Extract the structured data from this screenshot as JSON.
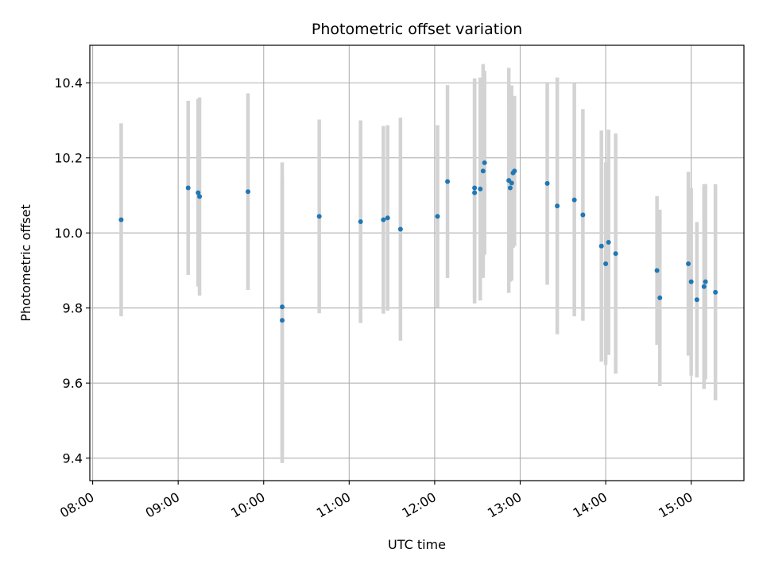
{
  "chart_data": {
    "type": "scatter",
    "title": "Photometric offset variation",
    "xlabel": "UTC time",
    "ylabel": "Photometric offset",
    "x_axis": "time",
    "xlim": [
      "07:58",
      "15:37"
    ],
    "ylim": [
      9.34,
      10.5
    ],
    "x_ticks": [
      "08:00",
      "09:00",
      "10:00",
      "11:00",
      "12:00",
      "13:00",
      "14:00",
      "15:00"
    ],
    "y_ticks": [
      9.4,
      9.6,
      9.8,
      10.0,
      10.2,
      10.4
    ],
    "grid": true,
    "legend": "none",
    "colors": {
      "point": "#1f77b4",
      "errorbar": "#d3d3d3",
      "grid": "#b0b0b0"
    },
    "points": [
      {
        "x": "08:20",
        "y": 10.035,
        "err": 0.257
      },
      {
        "x": "09:07",
        "y": 10.12,
        "err": 0.232
      },
      {
        "x": "09:14",
        "y": 10.107,
        "err": 0.25
      },
      {
        "x": "09:15",
        "y": 10.097,
        "err": 0.264
      },
      {
        "x": "09:49",
        "y": 10.11,
        "err": 0.262
      },
      {
        "x": "10:13",
        "y": 9.767,
        "err": 0.38
      },
      {
        "x": "10:13",
        "y": 9.803,
        "err": 0.385
      },
      {
        "x": "10:39",
        "y": 10.044,
        "err": 0.258
      },
      {
        "x": "11:08",
        "y": 10.03,
        "err": 0.27
      },
      {
        "x": "11:24",
        "y": 10.035,
        "err": 0.25
      },
      {
        "x": "11:27",
        "y": 10.04,
        "err": 0.247
      },
      {
        "x": "11:36",
        "y": 10.01,
        "err": 0.297
      },
      {
        "x": "12:02",
        "y": 10.044,
        "err": 0.243
      },
      {
        "x": "12:09",
        "y": 10.137,
        "err": 0.257
      },
      {
        "x": "12:28",
        "y": 10.12,
        "err": 0.292
      },
      {
        "x": "12:28",
        "y": 10.107,
        "err": 0.295
      },
      {
        "x": "12:32",
        "y": 10.117,
        "err": 0.297
      },
      {
        "x": "12:34",
        "y": 10.165,
        "err": 0.285
      },
      {
        "x": "12:35",
        "y": 10.187,
        "err": 0.245
      },
      {
        "x": "12:52",
        "y": 10.14,
        "err": 0.3
      },
      {
        "x": "12:53",
        "y": 10.12,
        "err": 0.25
      },
      {
        "x": "12:54",
        "y": 10.133,
        "err": 0.26
      },
      {
        "x": "12:55",
        "y": 10.16,
        "err": 0.2
      },
      {
        "x": "12:56",
        "y": 10.165,
        "err": 0.2
      },
      {
        "x": "13:19",
        "y": 10.132,
        "err": 0.27
      },
      {
        "x": "13:26",
        "y": 10.072,
        "err": 0.342
      },
      {
        "x": "13:38",
        "y": 10.088,
        "err": 0.31
      },
      {
        "x": "13:44",
        "y": 10.048,
        "err": 0.282
      },
      {
        "x": "13:57",
        "y": 9.965,
        "err": 0.308
      },
      {
        "x": "14:00",
        "y": 9.918,
        "err": 0.27
      },
      {
        "x": "14:02",
        "y": 9.975,
        "err": 0.3
      },
      {
        "x": "14:07",
        "y": 9.945,
        "err": 0.32
      },
      {
        "x": "14:36",
        "y": 9.9,
        "err": 0.198
      },
      {
        "x": "14:38",
        "y": 9.827,
        "err": 0.235
      },
      {
        "x": "14:58",
        "y": 9.918,
        "err": 0.245
      },
      {
        "x": "15:00",
        "y": 9.87,
        "err": 0.25
      },
      {
        "x": "15:04",
        "y": 9.822,
        "err": 0.207
      },
      {
        "x": "15:09",
        "y": 9.857,
        "err": 0.273
      },
      {
        "x": "15:10",
        "y": 9.87,
        "err": 0.26
      },
      {
        "x": "15:17",
        "y": 9.842,
        "err": 0.288
      }
    ]
  }
}
